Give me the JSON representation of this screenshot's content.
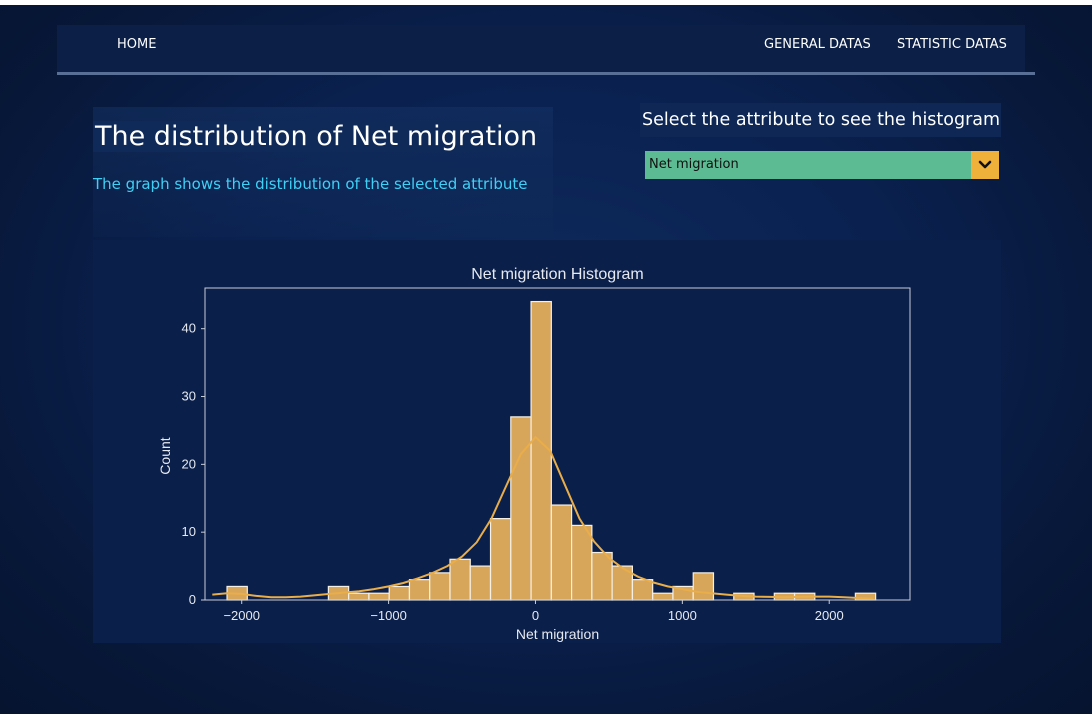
{
  "nav": {
    "home": "HOME",
    "general": "GENERAL DATAS",
    "statistic": "STATISTIC DATAS"
  },
  "header": {
    "title": "The distribution of Net migration",
    "subtitle": "The graph shows the distribution of the selected attribute"
  },
  "selector": {
    "label": "Select the attribute to see the histogram",
    "value": "Net migration",
    "icon": "chevron-down-icon"
  },
  "colors": {
    "bar": "#d8a65b",
    "kde": "#e9ad49",
    "select_bg": "#5dbb93",
    "select_arrow": "#f0b13a",
    "subtitle": "#3fd0f5"
  },
  "chart_data": {
    "type": "bar",
    "title": "Net migration Histogram",
    "xlabel": "Net migration",
    "ylabel": "Count",
    "xlim": [
      -2250,
      2550
    ],
    "ylim": [
      0,
      46
    ],
    "xticks": [
      -2000,
      -1000,
      0,
      1000,
      2000
    ],
    "xtick_labels": [
      "−2000",
      "−1000",
      "0",
      "1000",
      "2000"
    ],
    "yticks": [
      0,
      10,
      20,
      30,
      40
    ],
    "bins": [
      {
        "start": -2100,
        "end": -1962,
        "count": 2
      },
      {
        "start": -1962,
        "end": -1824,
        "count": 0
      },
      {
        "start": -1824,
        "end": -1686,
        "count": 0
      },
      {
        "start": -1686,
        "end": -1548,
        "count": 0
      },
      {
        "start": -1548,
        "end": -1410,
        "count": 0
      },
      {
        "start": -1410,
        "end": -1272,
        "count": 2
      },
      {
        "start": -1272,
        "end": -1134,
        "count": 1
      },
      {
        "start": -1134,
        "end": -996,
        "count": 1
      },
      {
        "start": -996,
        "end": -858,
        "count": 2
      },
      {
        "start": -858,
        "end": -720,
        "count": 3
      },
      {
        "start": -720,
        "end": -582,
        "count": 4
      },
      {
        "start": -582,
        "end": -444,
        "count": 6
      },
      {
        "start": -444,
        "end": -306,
        "count": 5
      },
      {
        "start": -306,
        "end": -168,
        "count": 12
      },
      {
        "start": -168,
        "end": -30,
        "count": 27
      },
      {
        "start": -30,
        "end": 108,
        "count": 44
      },
      {
        "start": 108,
        "end": 246,
        "count": 14
      },
      {
        "start": 246,
        "end": 384,
        "count": 11
      },
      {
        "start": 384,
        "end": 522,
        "count": 7
      },
      {
        "start": 522,
        "end": 660,
        "count": 5
      },
      {
        "start": 660,
        "end": 798,
        "count": 3
      },
      {
        "start": 798,
        "end": 936,
        "count": 1
      },
      {
        "start": 936,
        "end": 1074,
        "count": 2
      },
      {
        "start": 1074,
        "end": 1212,
        "count": 4
      },
      {
        "start": 1212,
        "end": 1350,
        "count": 0
      },
      {
        "start": 1350,
        "end": 1488,
        "count": 1
      },
      {
        "start": 1488,
        "end": 1626,
        "count": 0
      },
      {
        "start": 1626,
        "end": 1764,
        "count": 1
      },
      {
        "start": 1764,
        "end": 1902,
        "count": 1
      },
      {
        "start": 1902,
        "end": 2040,
        "count": 0
      },
      {
        "start": 2040,
        "end": 2178,
        "count": 0
      },
      {
        "start": 2178,
        "end": 2316,
        "count": 1
      }
    ],
    "kde": {
      "x": [
        -2200,
        -2100,
        -2000,
        -1900,
        -1800,
        -1700,
        -1600,
        -1500,
        -1400,
        -1300,
        -1200,
        -1100,
        -1000,
        -900,
        -800,
        -700,
        -600,
        -500,
        -400,
        -300,
        -200,
        -100,
        0,
        100,
        200,
        300,
        400,
        500,
        600,
        700,
        800,
        900,
        1000,
        1100,
        1200,
        1300,
        1400,
        1500,
        1600,
        1700,
        1800,
        1900,
        2000,
        2100,
        2200,
        2300
      ],
      "y": [
        0.8,
        1.0,
        0.9,
        0.6,
        0.4,
        0.4,
        0.5,
        0.7,
        0.9,
        1.1,
        1.3,
        1.6,
        2.0,
        2.5,
        3.2,
        4.0,
        5.0,
        6.4,
        8.5,
        12.0,
        16.8,
        21.5,
        24.0,
        22.0,
        17.0,
        12.0,
        8.6,
        6.2,
        4.6,
        3.4,
        2.6,
        2.0,
        1.6,
        1.2,
        1.0,
        0.8,
        0.6,
        0.5,
        0.45,
        0.4,
        0.45,
        0.5,
        0.5,
        0.4,
        0.3,
        0.2
      ]
    },
    "grid": false,
    "legend": "none"
  }
}
